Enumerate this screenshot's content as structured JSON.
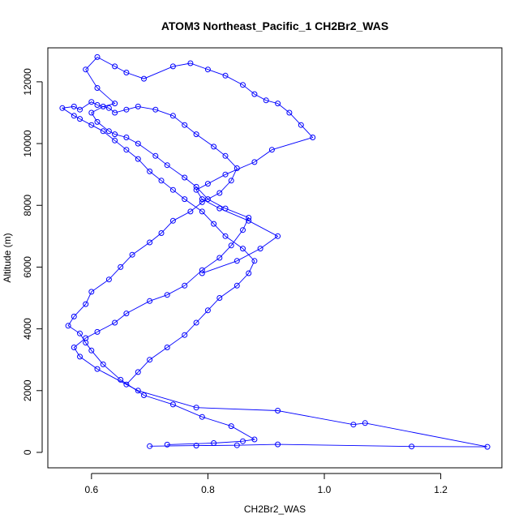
{
  "chart_data": {
    "type": "scatter",
    "title": "ATOM3 Northeast_Pacific_1 CH2Br2_WAS",
    "xlabel": "CH2Br2_WAS",
    "ylabel": "Altitude (m)",
    "xlim": [
      0.525,
      1.305
    ],
    "ylim": [
      -500,
      13100
    ],
    "x_ticks": [
      0.6,
      0.8,
      1.0,
      1.2
    ],
    "x_tick_labels": [
      "0.6",
      "0.8",
      "1.0",
      "1.2"
    ],
    "y_ticks": [
      0,
      2000,
      4000,
      6000,
      8000,
      10000,
      12000
    ],
    "y_tick_labels": [
      "0",
      "2000",
      "4000",
      "6000",
      "8000",
      "10000",
      "12000"
    ],
    "grid": false,
    "legend": "none",
    "marker": "open-circle",
    "line_style": "connected",
    "color": "#0000ff",
    "series": [
      {
        "x": [
          0.7,
          0.78,
          0.85,
          0.92,
          1.15,
          1.28,
          1.07,
          1.05,
          0.92,
          0.78,
          0.68,
          0.61,
          0.58,
          0.57,
          0.59,
          0.61,
          0.64,
          0.66,
          0.7,
          0.73,
          0.76,
          0.79,
          0.82,
          0.84,
          0.86,
          0.87,
          0.83,
          0.8,
          0.78,
          0.76,
          0.73,
          0.71,
          0.68,
          0.66,
          0.64,
          0.63,
          0.61,
          0.6,
          0.62,
          0.64,
          0.61,
          0.59,
          0.61,
          0.64,
          0.66,
          0.69,
          0.74,
          0.77,
          0.8,
          0.83,
          0.86,
          0.88,
          0.9,
          0.92,
          0.94,
          0.96,
          0.98,
          0.91,
          0.88,
          0.83,
          0.8,
          0.78,
          0.79,
          0.82,
          0.87,
          0.92,
          0.89,
          0.85,
          0.79
        ],
        "y": [
          200,
          220,
          230,
          260,
          190,
          180,
          950,
          900,
          1350,
          1450,
          2000,
          2700,
          3100,
          3400,
          3700,
          3900,
          4200,
          4500,
          4900,
          5100,
          5400,
          5900,
          6300,
          6700,
          7200,
          7600,
          7900,
          8200,
          8600,
          8900,
          9300,
          9600,
          10000,
          10200,
          10300,
          10400,
          10700,
          11000,
          11200,
          11300,
          11800,
          12400,
          12800,
          12500,
          12300,
          12100,
          12500,
          12600,
          12400,
          12200,
          11900,
          11600,
          11400,
          11300,
          11000,
          10600,
          10200,
          9800,
          9400,
          9000,
          8700,
          8500,
          8200,
          7900,
          7500,
          7000,
          6600,
          6200,
          5800
        ]
      },
      {
        "x": [
          0.73,
          0.81,
          0.86,
          0.88,
          0.84,
          0.79,
          0.74,
          0.69,
          0.65,
          0.62,
          0.6,
          0.59,
          0.58,
          0.56,
          0.57,
          0.59,
          0.6,
          0.63,
          0.65,
          0.67,
          0.7,
          0.72,
          0.74,
          0.77,
          0.79,
          0.82,
          0.84,
          0.85,
          0.83,
          0.81,
          0.78,
          0.76,
          0.74,
          0.71,
          0.68,
          0.66,
          0.64,
          0.63,
          0.61,
          0.6,
          0.58,
          0.57,
          0.55,
          0.57,
          0.58,
          0.6,
          0.62,
          0.64,
          0.66,
          0.68,
          0.7,
          0.72,
          0.74,
          0.76,
          0.79,
          0.81,
          0.83,
          0.86,
          0.88,
          0.87,
          0.85,
          0.82,
          0.8,
          0.78,
          0.76,
          0.73,
          0.7,
          0.68,
          0.66
        ],
        "y": [
          250,
          300,
          360,
          420,
          850,
          1150,
          1550,
          1850,
          2350,
          2850,
          3300,
          3550,
          3850,
          4100,
          4400,
          4800,
          5200,
          5600,
          6000,
          6400,
          6800,
          7100,
          7500,
          7800,
          8100,
          8400,
          8800,
          9200,
          9600,
          9900,
          10300,
          10600,
          10900,
          11100,
          11200,
          11100,
          11000,
          11150,
          11250,
          11350,
          11100,
          11200,
          11150,
          10900,
          10800,
          10600,
          10400,
          10100,
          9800,
          9500,
          9100,
          8800,
          8500,
          8200,
          7800,
          7400,
          7000,
          6600,
          6200,
          5800,
          5400,
          5000,
          4600,
          4200,
          3800,
          3400,
          3000,
          2600,
          2200
        ]
      }
    ]
  }
}
